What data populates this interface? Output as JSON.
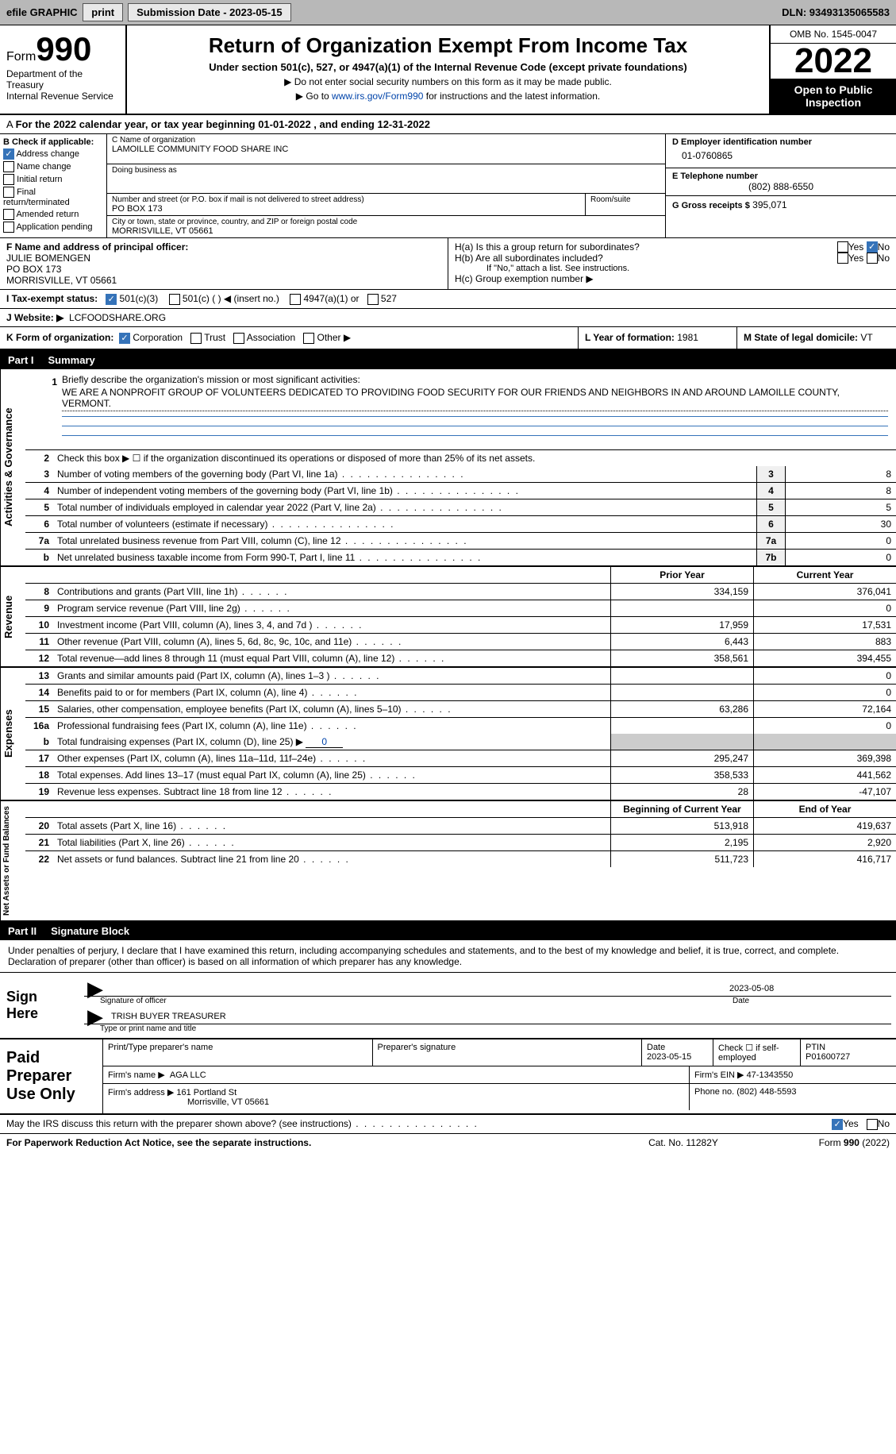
{
  "topbar": {
    "efile_label": "efile GRAPHIC",
    "print_btn": "print",
    "sub_date_label": "Submission Date - 2023-05-15",
    "dln": "DLN: 93493135065583"
  },
  "header": {
    "form_prefix": "Form",
    "form_number": "990",
    "dept": "Department of the Treasury",
    "irs": "Internal Revenue Service",
    "title": "Return of Organization Exempt From Income Tax",
    "sub": "Under section 501(c), 527, or 4947(a)(1) of the Internal Revenue Code (except private foundations)",
    "note1": "Do not enter social security numbers on this form as it may be made public.",
    "note2_pre": "Go to ",
    "note2_link": "www.irs.gov/Form990",
    "note2_post": " for instructions and the latest information.",
    "omb": "OMB No. 1545-0047",
    "year": "2022",
    "open": "Open to Public Inspection"
  },
  "cal": {
    "text": "For the 2022 calendar year, or tax year beginning 01-01-2022    , and ending 12-31-2022"
  },
  "blockB": {
    "label": "B Check if applicable:",
    "address_change": "Address change",
    "name_change": "Name change",
    "initial_return": "Initial return",
    "final_return": "Final return/terminated",
    "amended_return": "Amended return",
    "app_pending": "Application pending"
  },
  "blockC": {
    "name_label": "C Name of organization",
    "name": "LAMOILLE COMMUNITY FOOD SHARE INC",
    "dba_label": "Doing business as",
    "street_label": "Number and street (or P.O. box if mail is not delivered to street address)",
    "room_label": "Room/suite",
    "street": "PO BOX 173",
    "city_label": "City or town, state or province, country, and ZIP or foreign postal code",
    "city": "MORRISVILLE, VT  05661"
  },
  "blockD": {
    "ein_label": "D Employer identification number",
    "ein": "01-0760865",
    "tel_label": "E Telephone number",
    "tel": "(802) 888-6550",
    "gross_label": "G Gross receipts $",
    "gross": "395,071"
  },
  "blockF": {
    "label": "F Name and address of principal officer:",
    "name": "JULIE BOMENGEN",
    "addr1": "PO BOX 173",
    "addr2": "MORRISVILLE, VT  05661"
  },
  "blockH": {
    "ha": "H(a)  Is this a group return for subordinates?",
    "hb": "H(b)  Are all subordinates included?",
    "hb_note": "If \"No,\" attach a list. See instructions.",
    "hc": "H(c)  Group exemption number ▶",
    "yes": "Yes",
    "no": "No"
  },
  "rowI": {
    "label": "I   Tax-exempt status:",
    "c3": "501(c)(3)",
    "c_other": "501(c) (  ) ◀ (insert no.)",
    "a1": "4947(a)(1) or",
    "s527": "527"
  },
  "rowJ": {
    "label": "J   Website: ▶",
    "val": "LCFOODSHARE.ORG"
  },
  "rowK": {
    "k_label": "K Form of organization:",
    "corp": "Corporation",
    "trust": "Trust",
    "assoc": "Association",
    "other": "Other ▶",
    "l_label": "L Year of formation: ",
    "l_val": "1981",
    "m_label": "M State of legal domicile: ",
    "m_val": "VT"
  },
  "part1": {
    "num": "Part I",
    "title": "Summary"
  },
  "mission": {
    "num": "1",
    "label": "Briefly describe the organization's mission or most significant activities:",
    "text": "WE ARE A NONPROFIT GROUP OF VOLUNTEERS DEDICATED TO PROVIDING FOOD SECURITY FOR OUR FRIENDS AND NEIGHBORS IN AND AROUND LAMOILLE COUNTY, VERMONT."
  },
  "gov": {
    "title": "Activities & Governance",
    "line2": "Check this box ▶ ☐ if the organization discontinued its operations or disposed of more than 25% of its net assets.",
    "lines": [
      {
        "n": "3",
        "t": "Number of voting members of the governing body (Part VI, line 1a)",
        "box": "3",
        "v": "8"
      },
      {
        "n": "4",
        "t": "Number of independent voting members of the governing body (Part VI, line 1b)",
        "box": "4",
        "v": "8"
      },
      {
        "n": "5",
        "t": "Total number of individuals employed in calendar year 2022 (Part V, line 2a)",
        "box": "5",
        "v": "5"
      },
      {
        "n": "6",
        "t": "Total number of volunteers (estimate if necessary)",
        "box": "6",
        "v": "30"
      },
      {
        "n": "7a",
        "t": "Total unrelated business revenue from Part VIII, column (C), line 12",
        "box": "7a",
        "v": "0"
      },
      {
        "n": "b",
        "t": "Net unrelated business taxable income from Form 990-T, Part I, line 11",
        "box": "7b",
        "v": "0"
      }
    ]
  },
  "rev": {
    "title": "Revenue",
    "prior": "Prior Year",
    "current": "Current Year",
    "lines": [
      {
        "n": "8",
        "t": "Contributions and grants (Part VIII, line 1h)",
        "p": "334,159",
        "c": "376,041"
      },
      {
        "n": "9",
        "t": "Program service revenue (Part VIII, line 2g)",
        "p": "",
        "c": "0"
      },
      {
        "n": "10",
        "t": "Investment income (Part VIII, column (A), lines 3, 4, and 7d )",
        "p": "17,959",
        "c": "17,531"
      },
      {
        "n": "11",
        "t": "Other revenue (Part VIII, column (A), lines 5, 6d, 8c, 9c, 10c, and 11e)",
        "p": "6,443",
        "c": "883"
      },
      {
        "n": "12",
        "t": "Total revenue—add lines 8 through 11 (must equal Part VIII, column (A), line 12)",
        "p": "358,561",
        "c": "394,455"
      }
    ]
  },
  "exp": {
    "title": "Expenses",
    "lines": [
      {
        "n": "13",
        "t": "Grants and similar amounts paid (Part IX, column (A), lines 1–3 )",
        "p": "",
        "c": "0"
      },
      {
        "n": "14",
        "t": "Benefits paid to or for members (Part IX, column (A), line 4)",
        "p": "",
        "c": "0"
      },
      {
        "n": "15",
        "t": "Salaries, other compensation, employee benefits (Part IX, column (A), lines 5–10)",
        "p": "63,286",
        "c": "72,164"
      },
      {
        "n": "16a",
        "t": "Professional fundraising fees (Part IX, column (A), line 11e)",
        "p": "",
        "c": "0"
      }
    ],
    "line_b": "Total fundraising expenses (Part IX, column (D), line 25) ▶",
    "line_b_val": "0",
    "lines2": [
      {
        "n": "17",
        "t": "Other expenses (Part IX, column (A), lines 11a–11d, 11f–24e)",
        "p": "295,247",
        "c": "369,398"
      },
      {
        "n": "18",
        "t": "Total expenses. Add lines 13–17 (must equal Part IX, column (A), line 25)",
        "p": "358,533",
        "c": "441,562"
      },
      {
        "n": "19",
        "t": "Revenue less expenses. Subtract line 18 from line 12",
        "p": "28",
        "c": "-47,107"
      }
    ]
  },
  "net": {
    "title": "Net Assets or Fund Balances",
    "begin": "Beginning of Current Year",
    "end": "End of Year",
    "lines": [
      {
        "n": "20",
        "t": "Total assets (Part X, line 16)",
        "p": "513,918",
        "c": "419,637"
      },
      {
        "n": "21",
        "t": "Total liabilities (Part X, line 26)",
        "p": "2,195",
        "c": "2,920"
      },
      {
        "n": "22",
        "t": "Net assets or fund balances. Subtract line 21 from line 20",
        "p": "511,723",
        "c": "416,717"
      }
    ]
  },
  "part2": {
    "num": "Part II",
    "title": "Signature Block"
  },
  "sig": {
    "intro": "Under penalties of perjury, I declare that I have examined this return, including accompanying schedules and statements, and to the best of my knowledge and belief, it is true, correct, and complete. Declaration of preparer (other than officer) is based on all information of which preparer has any knowledge.",
    "sign_here": "Sign Here",
    "sig_label": "Signature of officer",
    "date_val": "2023-05-08",
    "date_label": "Date",
    "officer_name": "TRISH BUYER TREASURER",
    "name_label": "Type or print name and title"
  },
  "prep": {
    "label": "Paid Preparer Use Only",
    "name_label": "Print/Type preparer's name",
    "sig_label": "Preparer's signature",
    "date_label": "Date",
    "date_val": "2023-05-15",
    "check_label": "Check ☐ if self-employed",
    "ptin_label": "PTIN",
    "ptin": "P01600727",
    "firm_name_label": "Firm's name    ▶",
    "firm_name": "AGA LLC",
    "firm_ein_label": "Firm's EIN ▶",
    "firm_ein": "47-1343550",
    "firm_addr_label": "Firm's address ▶",
    "firm_addr1": "161 Portland St",
    "firm_addr2": "Morrisville, VT  05661",
    "firm_phone_label": "Phone no.",
    "firm_phone": "(802) 448-5593"
  },
  "footer": {
    "may_irs": "May the IRS discuss this return with the preparer shown above? (see instructions)",
    "yes": "Yes",
    "no": "No",
    "paperwork": "For Paperwork Reduction Act Notice, see the separate instructions.",
    "cat": "Cat. No. 11282Y",
    "form": "Form 990 (2022)"
  }
}
